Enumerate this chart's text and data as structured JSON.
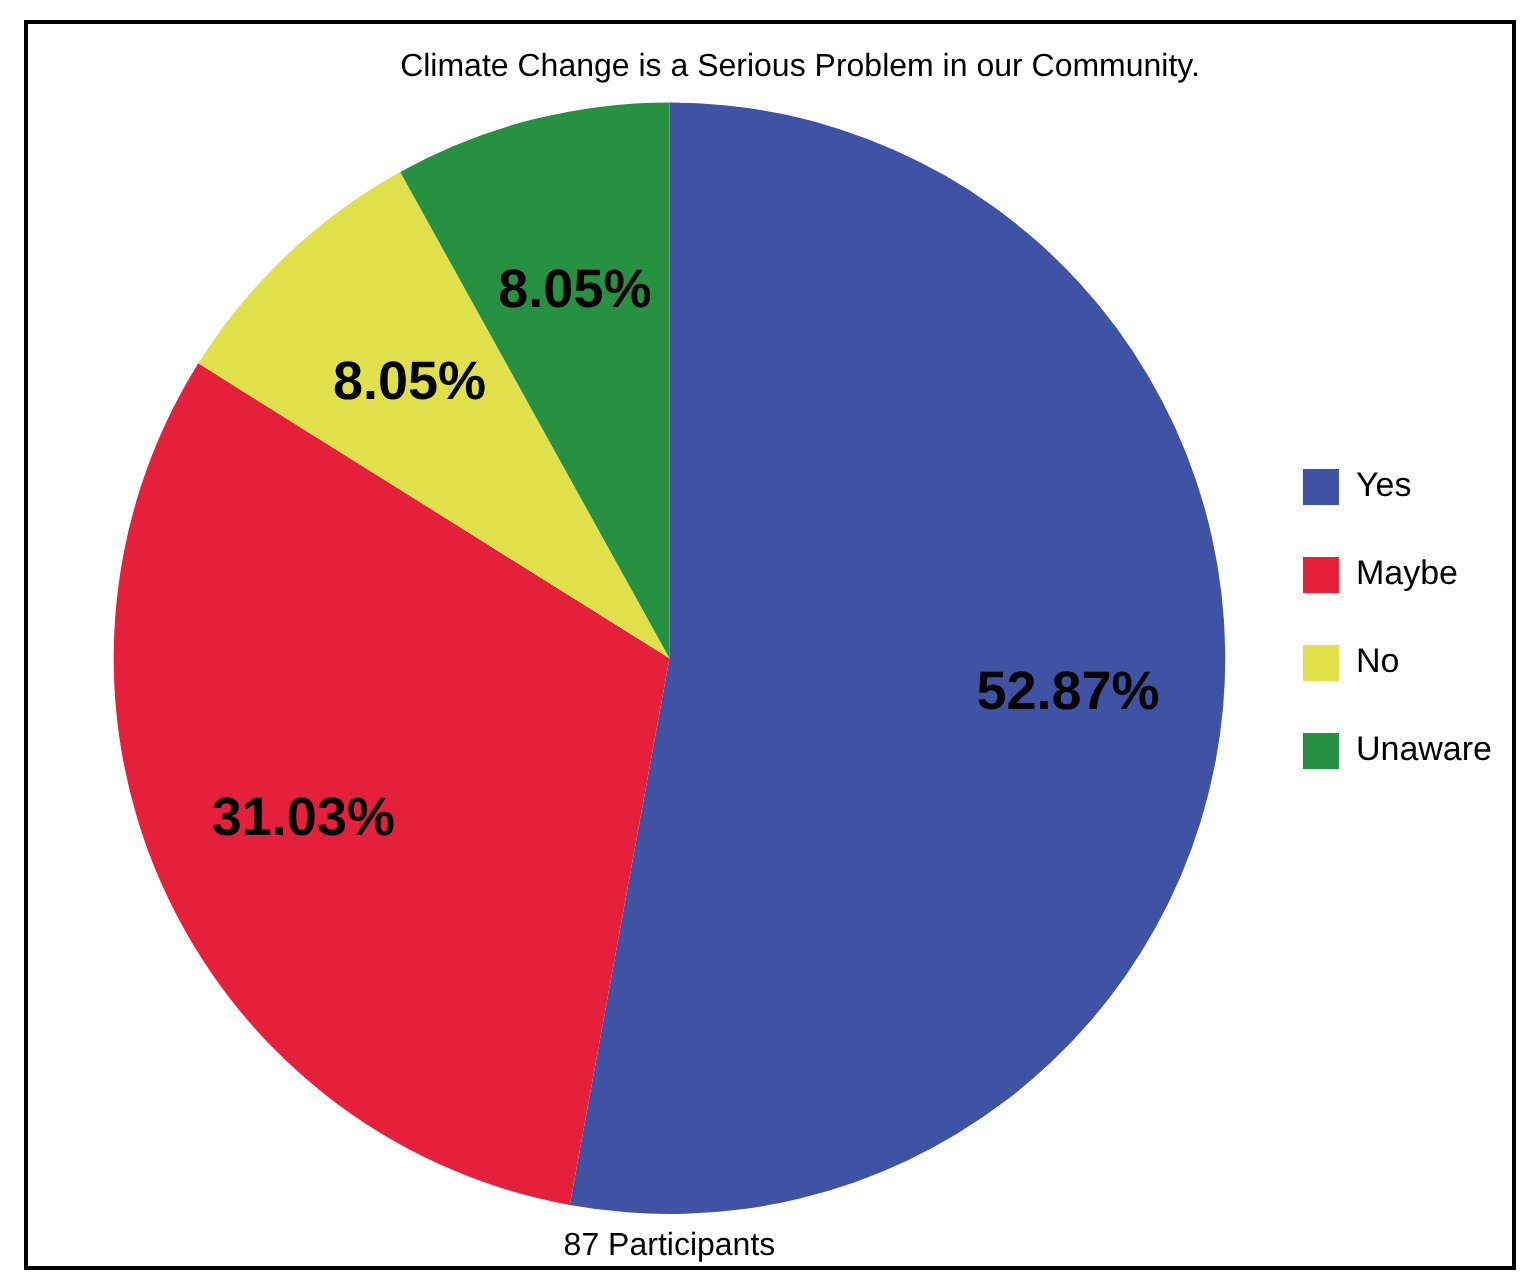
{
  "chart_data": {
    "type": "pie",
    "title": "Climate Change is a Serious Problem in our Community.",
    "categories": [
      "Yes",
      "Maybe",
      "No",
      "Unaware"
    ],
    "values": [
      52.87,
      31.03,
      8.05,
      8.05
    ],
    "value_labels": [
      "52.87%",
      "31.03%",
      "8.05%",
      "8.05%"
    ],
    "colors": [
      "#4052a3",
      "#e4203a",
      "#e0e04a",
      "#259141"
    ],
    "legend": "right",
    "annotations": [
      "87 Participants"
    ]
  }
}
